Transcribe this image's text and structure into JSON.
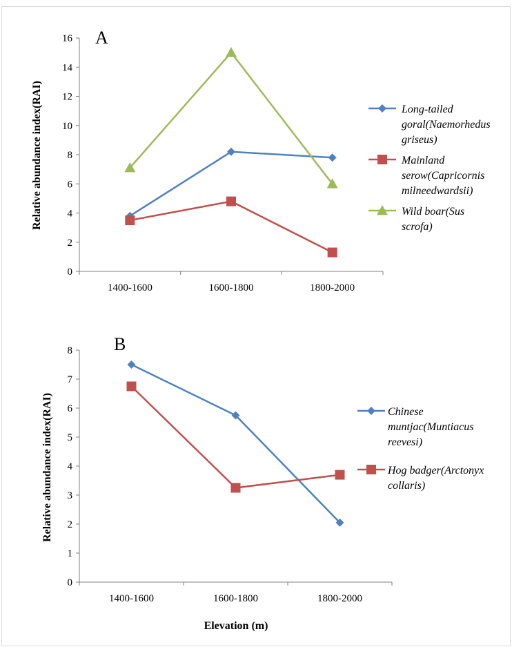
{
  "chart_data": [
    {
      "type": "line",
      "panel_label": "A",
      "categories": [
        "1400-1600",
        "1600-1800",
        "1800-2000"
      ],
      "ylabel": "Relative abundance index(RAI)",
      "xlabel": "",
      "ylim": [
        0,
        16
      ],
      "yticks": [
        0,
        2,
        4,
        6,
        8,
        10,
        12,
        14,
        16
      ],
      "grid": false,
      "legend": "right",
      "series": [
        {
          "name": "Long-tailed goral(Naemorhedus griseus)",
          "legend_lines": [
            "Long-tailed",
            "goral(Naemorhedus",
            "griseus)"
          ],
          "values": [
            3.8,
            8.2,
            7.8
          ],
          "color": "#4f81bd",
          "marker": "diamond"
        },
        {
          "name": "Mainland serow(Capricornis milneedwardsii)",
          "legend_lines": [
            "Mainland",
            "serow(Capricornis",
            "milneedwardsii)"
          ],
          "values": [
            3.5,
            4.8,
            1.3
          ],
          "color": "#c0504d",
          "marker": "square"
        },
        {
          "name": "Wild boar(Sus scrofa)",
          "legend_lines": [
            "Wild boar(Sus",
            "scrofa)"
          ],
          "values": [
            7.1,
            15.0,
            6.0
          ],
          "color": "#9bbb59",
          "marker": "triangle"
        }
      ]
    },
    {
      "type": "line",
      "panel_label": "B",
      "categories": [
        "1400-1600",
        "1600-1800",
        "1800-2000"
      ],
      "ylabel": "Relative abundance index(RAI)",
      "xlabel": "Elevation (m)",
      "ylim": [
        0,
        8
      ],
      "yticks": [
        0,
        1,
        2,
        3,
        4,
        5,
        6,
        7,
        8
      ],
      "grid": false,
      "legend": "right",
      "series": [
        {
          "name": "Chinese muntjac(Muntiacus reevesi)",
          "legend_lines": [
            "Chinese",
            "muntjac(Muntiacus",
            "reevesi)"
          ],
          "values": [
            7.5,
            5.75,
            2.05
          ],
          "color": "#4f81bd",
          "marker": "diamond"
        },
        {
          "name": "Hog badger(Arctonyx collaris)",
          "legend_lines": [
            "Hog badger(Arctonyx",
            "collaris)"
          ],
          "values": [
            6.75,
            3.25,
            3.7
          ],
          "color": "#c0504d",
          "marker": "square"
        }
      ]
    }
  ]
}
